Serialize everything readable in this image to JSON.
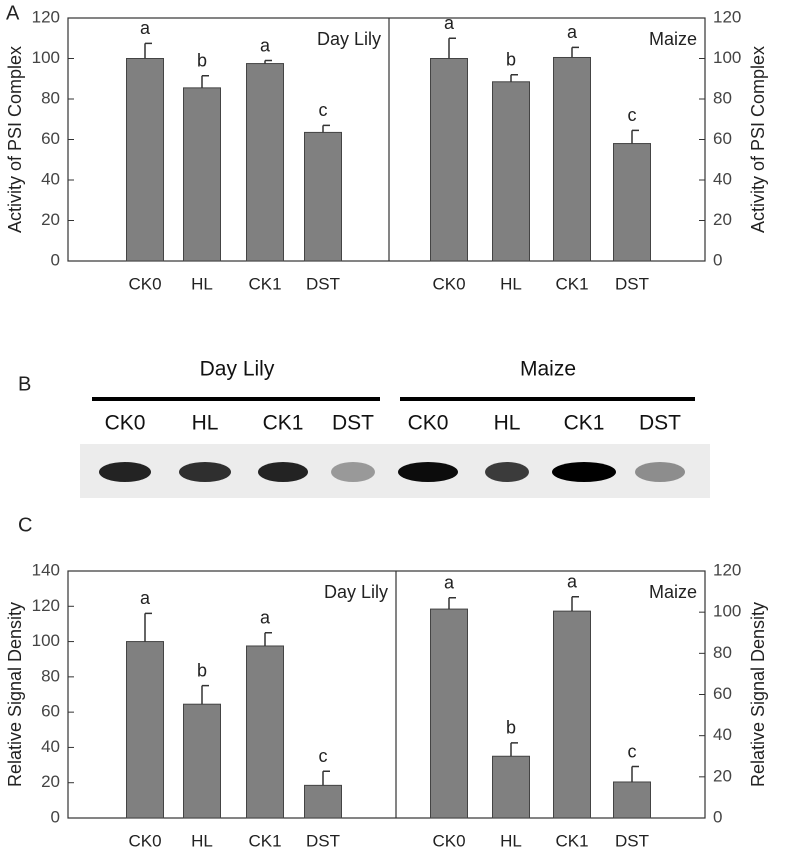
{
  "panel_labels": [
    "A",
    "B",
    "C"
  ],
  "blot": {
    "groups": [
      {
        "label": "Day Lily",
        "lanes": [
          "CK0",
          "HL",
          "CK1",
          "DST"
        ]
      },
      {
        "label": "Maize",
        "lanes": [
          "CK0",
          "HL",
          "CK1",
          "DST"
        ]
      }
    ]
  },
  "chart_data": [
    {
      "type": "bar",
      "title": "Day Lily",
      "ylabel": "Activity of PSI Complex",
      "y_axis_side": "left",
      "color": "#808080",
      "categories": [
        "CK0",
        "HL",
        "CK1",
        "DST"
      ],
      "values": [
        100,
        85.5,
        97.5,
        63.5
      ],
      "errors": [
        7.5,
        6,
        1.5,
        3.5
      ],
      "annotations": [
        "a",
        "b",
        "a",
        "c"
      ],
      "ylim": [
        0,
        120
      ],
      "yticks": [
        0,
        20,
        40,
        60,
        80,
        100,
        120
      ]
    },
    {
      "type": "bar",
      "title": "Maize",
      "ylabel": "Activity of PSI Complex",
      "y_axis_side": "right",
      "color": "#808080",
      "categories": [
        "CK0",
        "HL",
        "CK1",
        "DST"
      ],
      "values": [
        100,
        88.5,
        100.5,
        58
      ],
      "errors": [
        10,
        3.5,
        5,
        6.5
      ],
      "annotations": [
        "a",
        "b",
        "a",
        "c"
      ],
      "ylim": [
        0,
        120
      ],
      "yticks": [
        0,
        20,
        40,
        60,
        80,
        100,
        120
      ]
    },
    {
      "type": "bar",
      "title": "Day Lily",
      "ylabel": "Relative Signal Density",
      "y_axis_side": "left",
      "color": "#808080",
      "categories": [
        "CK0",
        "HL",
        "CK1",
        "DST"
      ],
      "values": [
        100,
        64.5,
        97.5,
        18.5
      ],
      "errors": [
        16,
        10.5,
        7.5,
        8
      ],
      "annotations": [
        "a",
        "b",
        "a",
        "c"
      ],
      "ylim": [
        0,
        140
      ],
      "yticks": [
        0,
        20,
        40,
        60,
        80,
        100,
        120,
        140
      ]
    },
    {
      "type": "bar",
      "title": "Maize",
      "ylabel": "Relative Signal Density",
      "y_axis_side": "right",
      "color": "#808080",
      "categories": [
        "CK0",
        "HL",
        "CK1",
        "DST"
      ],
      "values": [
        101.5,
        30,
        100.5,
        17.5
      ],
      "errors": [
        5.5,
        6.5,
        7,
        7.5
      ],
      "annotations": [
        "a",
        "b",
        "a",
        "c"
      ],
      "ylim": [
        0,
        120
      ],
      "yticks": [
        0,
        20,
        40,
        60,
        80,
        100,
        120
      ]
    }
  ]
}
